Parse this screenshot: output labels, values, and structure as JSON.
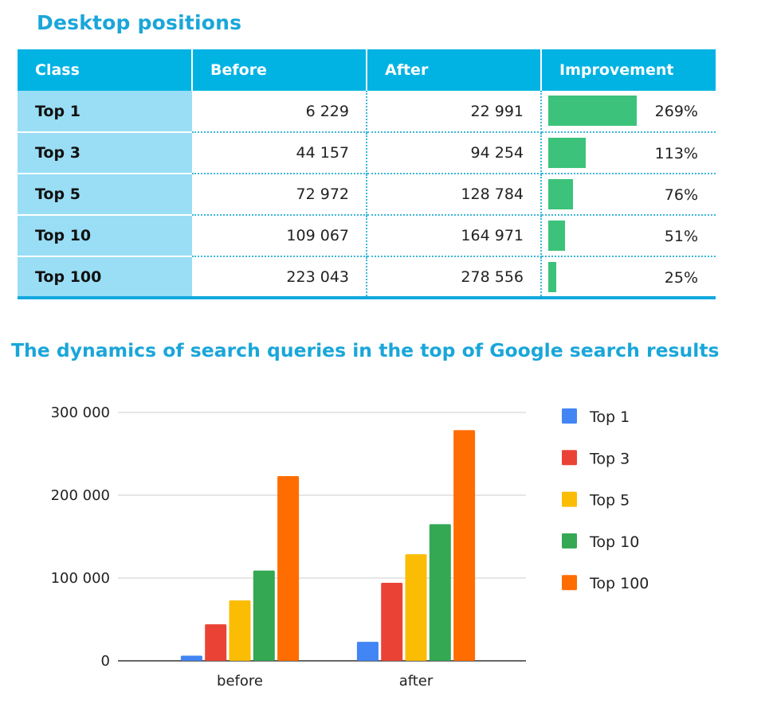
{
  "table_title": "Desktop positions",
  "table": {
    "headers": [
      "Class",
      "Before",
      "After",
      "Improvement"
    ],
    "rows": [
      {
        "cls": "Top 1",
        "before": "6 229",
        "after": "22 991",
        "improvement": "269%",
        "improvement_value": 269
      },
      {
        "cls": "Top 3",
        "before": "44 157",
        "after": "94 254",
        "improvement": "113%",
        "improvement_value": 113
      },
      {
        "cls": "Top 5",
        "before": "72 972",
        "after": "128 784",
        "improvement": "76%",
        "improvement_value": 76
      },
      {
        "cls": "Top 10",
        "before": "109 067",
        "after": "164 971",
        "improvement": "51%",
        "improvement_value": 51
      },
      {
        "cls": "Top 100",
        "before": "223 043",
        "after": "278 556",
        "improvement": "25%",
        "improvement_value": 25
      }
    ],
    "colors": {
      "header": "#00b3e3",
      "class_cell": "#99def5",
      "bar": "#3cc27a"
    }
  },
  "chart_title": "The dynamics of search queries in the top of Google search results",
  "chart_data": {
    "type": "bar",
    "title": "The dynamics of search queries in the top of Google search results",
    "categories": [
      "before",
      "after"
    ],
    "series": [
      {
        "name": "Top 1",
        "values": [
          6229,
          22991
        ],
        "color": "#4285f4"
      },
      {
        "name": "Top 3",
        "values": [
          44157,
          94254
        ],
        "color": "#ea4335"
      },
      {
        "name": "Top 5",
        "values": [
          72972,
          128784
        ],
        "color": "#fbbc04"
      },
      {
        "name": "Top 10",
        "values": [
          109067,
          164971
        ],
        "color": "#34a853"
      },
      {
        "name": "Top 100",
        "values": [
          223043,
          278556
        ],
        "color": "#ff6d01"
      }
    ],
    "yticks": [
      0,
      100000,
      200000,
      300000
    ],
    "ytick_labels": [
      "0",
      "100 000",
      "200 000",
      "300 000"
    ],
    "ylim": [
      0,
      300000
    ],
    "xlabel": "",
    "ylabel": "",
    "grid": true,
    "legend_position": "right"
  }
}
